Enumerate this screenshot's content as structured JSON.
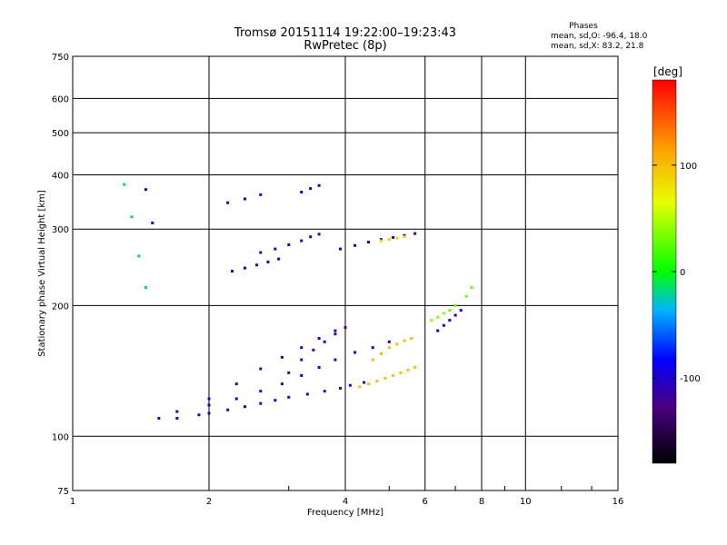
{
  "chart_data": {
    "type": "scatter",
    "title": "Tromsø 20151114 19:22:00–19:23:43",
    "subtitle": "RwPretec (8p)",
    "xlabel": "Frequency [MHz]",
    "ylabel": "Stationary phase Virtual Height [km]",
    "x_scale": "log",
    "y_scale": "log",
    "xlim": [
      1,
      16
    ],
    "ylim": [
      75,
      750
    ],
    "x_ticks": [
      1,
      2,
      4,
      6,
      8,
      10,
      16
    ],
    "x_tick_labels": [
      "1",
      "2",
      "4",
      "6",
      "8",
      "10",
      "16"
    ],
    "y_ticks": [
      75,
      100,
      200,
      300,
      400,
      500,
      600,
      750
    ],
    "y_tick_labels": [
      "75",
      "100",
      "200",
      "300",
      "400",
      "500",
      "600",
      "750"
    ],
    "grid": true,
    "phases_box": {
      "heading": "Phases",
      "line1": "mean, sd,O: -96.4, 18.0",
      "line2": "mean, sd,X:  83.2, 21.8"
    },
    "colorbar": {
      "label": "[deg]",
      "range": [
        -180,
        180
      ],
      "tick_values": [
        100,
        0,
        -100
      ],
      "tick_labels": [
        "100",
        "0",
        "-100"
      ]
    },
    "traces": [
      {
        "x": [
          1.55,
          1.7,
          1.9,
          2.0,
          2.2,
          2.4,
          2.6,
          2.8,
          3.0,
          3.3,
          3.6,
          3.9,
          4.1,
          4.4
        ],
        "y": [
          110,
          110,
          112,
          113,
          115,
          117,
          119,
          121,
          123,
          125,
          127,
          129,
          131,
          133
        ],
        "phase": -105
      },
      {
        "x": [
          1.7,
          2.0,
          2.3,
          2.6,
          2.9,
          3.2,
          3.5,
          3.8,
          4.2,
          4.6,
          5.0
        ],
        "y": [
          114,
          118,
          122,
          127,
          132,
          138,
          144,
          150,
          156,
          160,
          165
        ],
        "phase": -90
      },
      {
        "x": [
          2.0,
          2.3,
          2.6,
          2.9,
          3.2,
          3.5,
          3.8
        ],
        "y": [
          122,
          132,
          143,
          152,
          160,
          168,
          175
        ],
        "phase": -100
      },
      {
        "x": [
          3.0,
          3.2,
          3.4,
          3.6,
          3.8,
          4.0
        ],
        "y": [
          140,
          150,
          158,
          165,
          172,
          178
        ],
        "phase": -125
      },
      {
        "x": [
          4.3,
          4.5,
          4.7,
          4.9,
          5.1,
          5.3,
          5.5,
          5.7
        ],
        "y": [
          130,
          132,
          134,
          136,
          138,
          140,
          142,
          144
        ],
        "phase": 95
      },
      {
        "x": [
          4.6,
          4.8,
          5.0,
          5.2,
          5.4,
          5.6
        ],
        "y": [
          150,
          155,
          160,
          163,
          166,
          168
        ],
        "phase": 100
      },
      {
        "x": [
          2.25,
          2.4,
          2.55,
          2.7,
          2.85
        ],
        "y": [
          240,
          244,
          248,
          252,
          256
        ],
        "phase": -95
      },
      {
        "x": [
          2.6,
          2.8,
          3.0,
          3.2,
          3.35,
          3.5
        ],
        "y": [
          265,
          270,
          276,
          282,
          288,
          292
        ],
        "phase": -105
      },
      {
        "x": [
          2.2,
          2.4,
          2.6
        ],
        "y": [
          345,
          352,
          360
        ],
        "phase": -100
      },
      {
        "x": [
          3.2,
          3.35,
          3.5
        ],
        "y": [
          365,
          372,
          378
        ],
        "phase": -100
      },
      {
        "x": [
          3.9,
          4.2,
          4.5,
          4.8,
          5.1,
          5.4,
          5.7
        ],
        "y": [
          270,
          275,
          280,
          284,
          287,
          290,
          293
        ],
        "phase": -100
      },
      {
        "x": [
          4.8,
          5.0,
          5.2,
          5.4
        ],
        "y": [
          282,
          284,
          286,
          288
        ],
        "phase": 90
      },
      {
        "x": [
          6.4,
          6.6,
          6.8,
          7.0,
          7.2
        ],
        "y": [
          175,
          180,
          185,
          190,
          195
        ],
        "phase": -95
      },
      {
        "x": [
          6.2,
          6.4,
          6.6
        ],
        "y": [
          185,
          188,
          192
        ],
        "phase": 40
      },
      {
        "x": [
          6.8,
          7.0,
          7.4,
          7.6
        ],
        "y": [
          195,
          200,
          210,
          220
        ],
        "phase": 30
      },
      {
        "x": [
          1.3,
          1.35,
          1.4,
          1.45
        ],
        "y": [
          380,
          320,
          260,
          220
        ],
        "phase": -25
      },
      {
        "x": [
          1.45,
          1.5
        ],
        "y": [
          370,
          310
        ],
        "phase": -100
      }
    ]
  }
}
